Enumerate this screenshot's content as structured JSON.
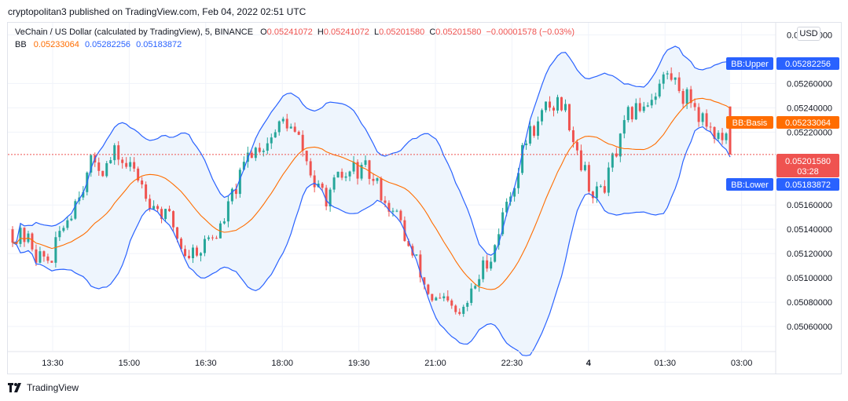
{
  "header": {
    "publisher_line": "cryptopolitan3 published on TradingView.com, Feb 04, 2022 02:51 UTC"
  },
  "footer": {
    "brand": "TradingView"
  },
  "currency_button": "USD",
  "legend": {
    "symbol": "VeChain / US Dollar (calculated by TradingView), 5, BINANCE",
    "o_label": "O",
    "o_value": "0.05241072",
    "h_label": "H",
    "h_value": "0.05241072",
    "l_label": "L",
    "l_value": "0.05201580",
    "c_label": "C",
    "c_value": "0.05201580",
    "change": "−0.00001578 (−0.03%)",
    "indicator_name": "BB",
    "bb_basis_value": "0.05233064",
    "bb_upper_value": "0.05282256",
    "bb_lower_value": "0.05183872"
  },
  "colors": {
    "up": "#26a69a",
    "down": "#ef5350",
    "basis": "#ff6d00",
    "band": "#2962ff",
    "band_fill": "#eef5fd",
    "grid": "#f0f3fa"
  },
  "chart_data": {
    "type": "candlestick",
    "symbol": "VeChain / US Dollar",
    "interval": "5",
    "exchange": "BINANCE",
    "x_ticks": [
      "13:30",
      "15:00",
      "16:30",
      "18:00",
      "19:30",
      "21:00",
      "22:30",
      "4",
      "01:30",
      "03:00"
    ],
    "y_ticks": [
      "0.05300000",
      "0.05260000",
      "0.05240000",
      "0.05220000",
      "0.05160000",
      "0.05140000",
      "0.05120000",
      "0.05100000",
      "0.05080000",
      "0.05060000"
    ],
    "ylim": [
      0.0504,
      0.0531
    ],
    "last_price": {
      "value": "0.05201580",
      "countdown": "03:28"
    },
    "series": [
      {
        "name": "BB:Upper",
        "value": "0.05282256"
      },
      {
        "name": "BB:Basis",
        "value": "0.05233064"
      },
      {
        "name": "BB:Lower",
        "value": "0.05183872"
      }
    ],
    "approx_close_path": [
      0.0514,
      0.0511,
      0.0519,
      0.052,
      0.0517,
      0.0512,
      0.0514,
      0.0521,
      0.0523,
      0.0516,
      0.0519,
      0.0516,
      0.0509,
      0.0506,
      0.0513,
      0.0522,
      0.0525,
      0.0516,
      0.0523,
      0.0527,
      0.0524,
      0.052
    ]
  }
}
